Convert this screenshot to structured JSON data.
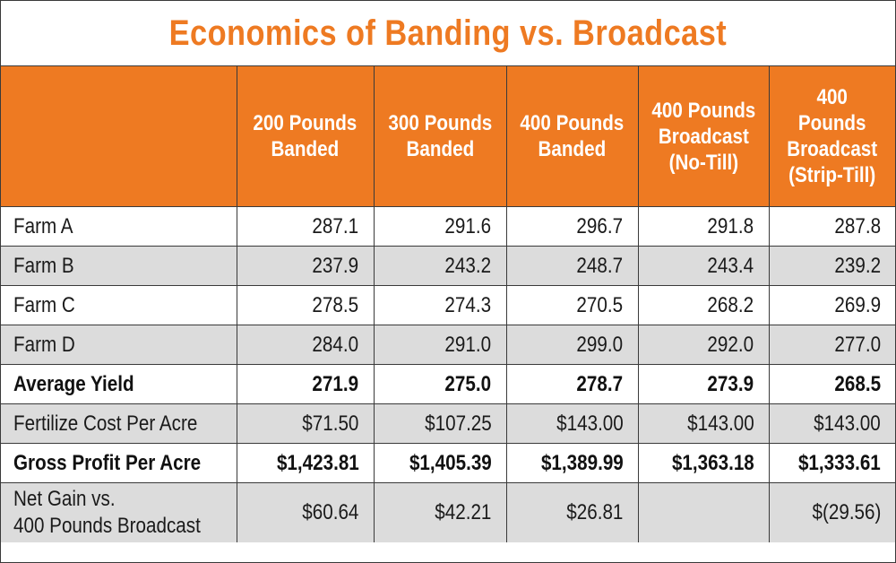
{
  "title": "Economics of Banding vs. Broadcast",
  "accent_color": "#ee7a22",
  "shade_color": "#dcdcdc",
  "table": {
    "columns": [
      "",
      "200 Pounds\nBanded",
      "300 Pounds\nBanded",
      "400 Pounds\nBanded",
      "400 Pounds\nBroadcast\n(No-Till)",
      "400\nPounds\nBroadcast\n(Strip-Till)"
    ],
    "rows": [
      {
        "label": "Farm A",
        "values": [
          "287.1",
          "291.6",
          "296.7",
          "291.8",
          "287.8"
        ]
      },
      {
        "label": "Farm B",
        "values": [
          "237.9",
          "243.2",
          "248.7",
          "243.4",
          "239.2"
        ]
      },
      {
        "label": "Farm C",
        "values": [
          "278.5",
          "274.3",
          "270.5",
          "268.2",
          "269.9"
        ]
      },
      {
        "label": "Farm D",
        "values": [
          "284.0",
          "291.0",
          "299.0",
          "292.0",
          "277.0"
        ]
      },
      {
        "label": "Average Yield",
        "values": [
          "271.9",
          "275.0",
          "278.7",
          "273.9",
          "268.5"
        ]
      },
      {
        "label": "Fertilize Cost Per Acre",
        "values": [
          "$71.50",
          "$107.25",
          "$143.00",
          "$143.00",
          "$143.00"
        ]
      },
      {
        "label": "Gross Profit Per Acre",
        "values": [
          "$1,423.81",
          "$1,405.39",
          "$1,389.99",
          "$1,363.18",
          "$1,333.61"
        ]
      },
      {
        "label": "Net Gain vs.\n400 Pounds Broadcast",
        "values": [
          "$60.64",
          "$42.21",
          "$26.81",
          "",
          "$(29.56)"
        ]
      }
    ]
  }
}
